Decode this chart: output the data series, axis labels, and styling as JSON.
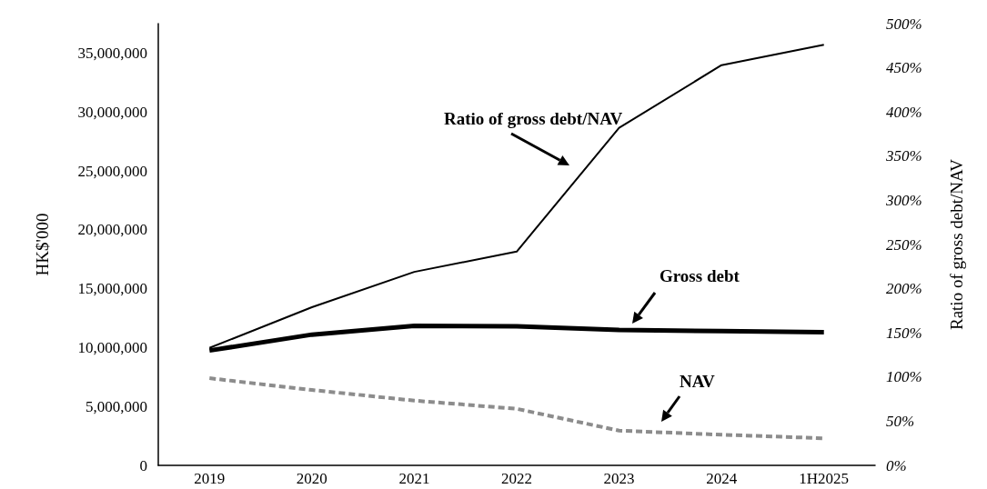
{
  "chart_data": {
    "type": "line",
    "ylabel": "HK$'000",
    "y2label": "Ratio of gross debt/NAV",
    "categories": [
      "2019",
      "2020",
      "2021",
      "2022",
      "2023",
      "2024",
      "1H2025"
    ],
    "series": [
      {
        "name": "Ratio of gross debt/NAV",
        "color": "#000000",
        "axis": "y2",
        "line_style": "solid",
        "values": [
          133,
          179,
          219,
          242,
          382,
          453,
          476
        ]
      },
      {
        "name": "Gross debt",
        "color": "#000000",
        "line_style": "solid",
        "values": [
          9750000,
          11100000,
          11850000,
          11800000,
          11500000,
          11400000,
          11300000
        ]
      },
      {
        "name": "NAV",
        "color": "#8c8c8c",
        "line_style": "dashed",
        "values": [
          7400000,
          6400000,
          5500000,
          4800000,
          2950000,
          2600000,
          2300000
        ]
      }
    ],
    "ylim": [
      0,
      37500000
    ],
    "yticks": [
      {
        "value": 0,
        "label": "0"
      },
      {
        "value": 5000000,
        "label": "5,000,000"
      },
      {
        "value": 10000000,
        "label": "10,000,000"
      },
      {
        "value": 15000000,
        "label": "15,000,000"
      },
      {
        "value": 20000000,
        "label": "20,000,000"
      },
      {
        "value": 25000000,
        "label": "25,000,000"
      },
      {
        "value": 30000000,
        "label": "30,000,000"
      },
      {
        "value": 35000000,
        "label": "35,000,000"
      }
    ],
    "y2lim": [
      0,
      500
    ],
    "y2ticks": [
      {
        "value": 0,
        "label": "0%"
      },
      {
        "value": 50,
        "label": "50%"
      },
      {
        "value": 100,
        "label": "100%"
      },
      {
        "value": 150,
        "label": "150%"
      },
      {
        "value": 200,
        "label": "200%"
      },
      {
        "value": 250,
        "label": "250%"
      },
      {
        "value": 300,
        "label": "300%"
      },
      {
        "value": 350,
        "label": "350%"
      },
      {
        "value": 400,
        "label": "400%"
      },
      {
        "value": 450,
        "label": "450%"
      },
      {
        "value": 500,
        "label": "500%"
      }
    ],
    "grid": false,
    "legend": false,
    "marker": "none"
  }
}
